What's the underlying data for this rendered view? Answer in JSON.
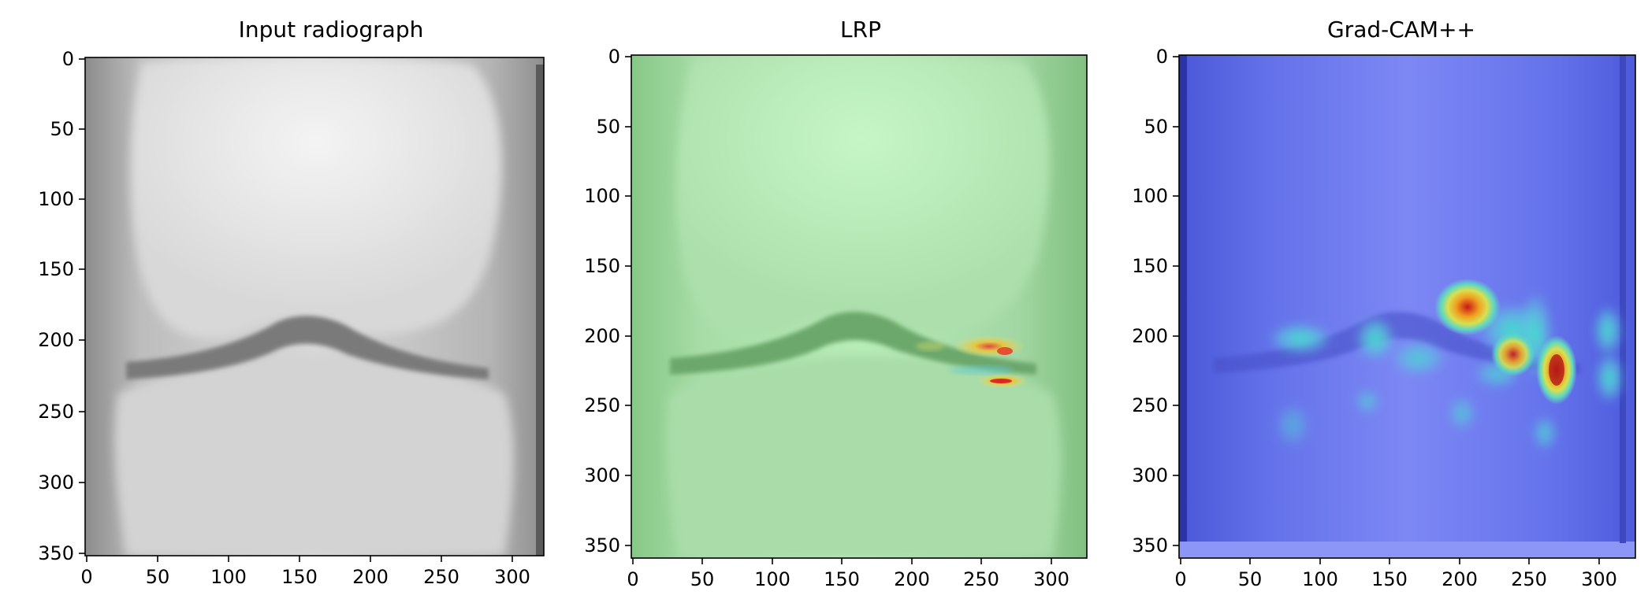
{
  "panels": [
    {
      "title": "Input radiograph",
      "style": "grayscale",
      "x_ticks": [
        "0",
        "50",
        "100",
        "150",
        "200",
        "250",
        "300"
      ],
      "y_ticks": [
        "0",
        "50",
        "100",
        "150",
        "200",
        "250",
        "300",
        "350"
      ]
    },
    {
      "title": "LRP",
      "style": "lrp-heatmap",
      "x_ticks": [
        "0",
        "50",
        "100",
        "150",
        "200",
        "250",
        "300"
      ],
      "y_ticks": [
        "0",
        "50",
        "100",
        "150",
        "200",
        "250",
        "300",
        "350"
      ]
    },
    {
      "title": "Grad-CAM++",
      "style": "gradcam-heatmap",
      "x_ticks": [
        "0",
        "50",
        "100",
        "150",
        "200",
        "250",
        "300"
      ],
      "y_ticks": [
        "0",
        "50",
        "100",
        "150",
        "200",
        "250",
        "300",
        "350"
      ]
    }
  ],
  "colors": {
    "background": "#ffffff",
    "gray_bone": "#e8e8e8",
    "gray_dark": "#8a8a8a",
    "lrp_base": "#a8e0a8",
    "gradcam_base": "#6f7ef0",
    "heat_hot": "#e83020",
    "heat_warm": "#f0d020"
  }
}
